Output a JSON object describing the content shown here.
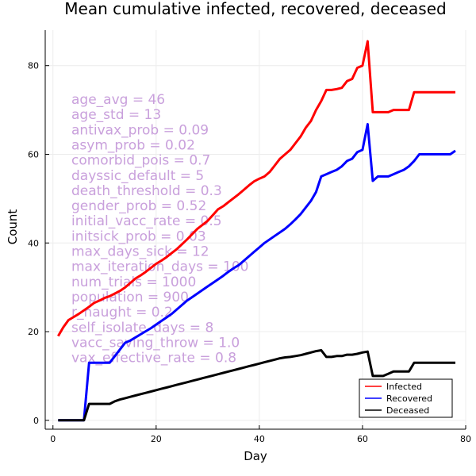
{
  "chart_data": {
    "type": "line",
    "title": "Mean cumulative infected, recovered, deceased",
    "xlabel": "Day",
    "ylabel": "Count",
    "xlim": [
      -1.5,
      80
    ],
    "ylim": [
      -2,
      88
    ],
    "xticks": [
      0,
      20,
      40,
      60,
      80
    ],
    "yticks": [
      0,
      20,
      40,
      60,
      80
    ],
    "grid": true,
    "legend_position": "bottom-right",
    "annotation_color": "#c9a0dc",
    "annotations": [
      "age_avg = 46",
      "age_std = 13",
      "antivax_prob = 0.09",
      "asym_prob = 0.02",
      "comorbid_pois = 0.7",
      "dayssic_default = 5",
      "death_threshold = 0.3",
      "gender_prob = 0.52",
      "initial_vacc_rate = 0.5",
      "initsick_prob = 0.03",
      "max_days_sick = 12",
      "max_iteration_days = 100",
      "num_trials = 1000",
      "population = 900",
      "r_naught = 0.2",
      "self_isolate_days = 8",
      "vacc_saving_throw = 1.0",
      "vax_effective_rate = 0.8"
    ],
    "series": [
      {
        "name": "Infected",
        "color": "#ff0000",
        "points": [
          [
            1,
            19
          ],
          [
            2,
            21
          ],
          [
            3,
            22.6
          ],
          [
            4,
            23.3
          ],
          [
            5,
            24
          ],
          [
            6,
            24.8
          ],
          [
            7,
            25.6
          ],
          [
            8,
            26.5
          ],
          [
            9,
            27
          ],
          [
            10,
            27.6
          ],
          [
            11,
            28
          ],
          [
            12,
            28.6
          ],
          [
            13,
            29.2
          ],
          [
            14,
            30
          ],
          [
            15,
            31
          ],
          [
            16,
            32
          ],
          [
            17,
            32.7
          ],
          [
            18,
            33.5
          ],
          [
            19,
            34.4
          ],
          [
            20,
            35.3
          ],
          [
            21,
            36
          ],
          [
            22,
            36.8
          ],
          [
            23,
            37.7
          ],
          [
            24,
            38.6
          ],
          [
            25,
            39.7
          ],
          [
            26,
            40.8
          ],
          [
            27,
            42
          ],
          [
            28,
            43.2
          ],
          [
            29,
            44.1
          ],
          [
            30,
            45
          ],
          [
            31,
            46.3
          ],
          [
            32,
            47.6
          ],
          [
            33,
            48.3
          ],
          [
            34,
            49.2
          ],
          [
            35,
            50.1
          ],
          [
            36,
            51
          ],
          [
            37,
            52
          ],
          [
            38,
            53
          ],
          [
            39,
            53.9
          ],
          [
            40,
            54.5
          ],
          [
            41,
            55
          ],
          [
            42,
            56
          ],
          [
            43,
            57.5
          ],
          [
            44,
            59
          ],
          [
            45,
            60
          ],
          [
            46,
            61
          ],
          [
            47,
            62.5
          ],
          [
            48,
            64
          ],
          [
            49,
            66
          ],
          [
            50,
            67.5
          ],
          [
            51,
            70
          ],
          [
            52,
            72
          ],
          [
            53,
            74.5
          ],
          [
            54,
            74.5
          ],
          [
            55,
            74.7
          ],
          [
            56,
            75
          ],
          [
            57,
            76.5
          ],
          [
            58,
            77
          ],
          [
            59,
            79.5
          ],
          [
            60,
            80
          ],
          [
            61,
            85.5
          ],
          [
            62,
            69.5
          ],
          [
            63,
            69.5
          ],
          [
            64,
            69.5
          ],
          [
            65,
            69.5
          ],
          [
            66,
            70
          ],
          [
            67,
            70
          ],
          [
            68,
            70
          ],
          [
            69,
            70
          ],
          [
            70,
            74
          ],
          [
            71,
            74
          ],
          [
            72,
            74
          ],
          [
            73,
            74
          ],
          [
            74,
            74
          ],
          [
            75,
            74
          ],
          [
            76,
            74
          ],
          [
            77,
            74
          ],
          [
            78,
            74
          ]
        ]
      },
      {
        "name": "Recovered",
        "color": "#0000ff",
        "points": [
          [
            1,
            0
          ],
          [
            2,
            0
          ],
          [
            3,
            0
          ],
          [
            4,
            0
          ],
          [
            5,
            0
          ],
          [
            6,
            0
          ],
          [
            7,
            13
          ],
          [
            8,
            13
          ],
          [
            9,
            13
          ],
          [
            10,
            13
          ],
          [
            11,
            13
          ],
          [
            12,
            14.5
          ],
          [
            13,
            16
          ],
          [
            14,
            17.5
          ],
          [
            15,
            18
          ],
          [
            16,
            18.7
          ],
          [
            17,
            19.4
          ],
          [
            18,
            20.1
          ],
          [
            19,
            20.8
          ],
          [
            20,
            21.6
          ],
          [
            21,
            22.4
          ],
          [
            22,
            23.2
          ],
          [
            23,
            24
          ],
          [
            24,
            25
          ],
          [
            25,
            26
          ],
          [
            26,
            27
          ],
          [
            27,
            27.8
          ],
          [
            28,
            28.6
          ],
          [
            29,
            29.4
          ],
          [
            30,
            30.2
          ],
          [
            31,
            31
          ],
          [
            32,
            31.8
          ],
          [
            33,
            32.6
          ],
          [
            34,
            33.5
          ],
          [
            35,
            34.3
          ],
          [
            36,
            35
          ],
          [
            37,
            36
          ],
          [
            38,
            37
          ],
          [
            39,
            38
          ],
          [
            40,
            39
          ],
          [
            41,
            40
          ],
          [
            42,
            40.8
          ],
          [
            43,
            41.6
          ],
          [
            44,
            42.4
          ],
          [
            45,
            43.2
          ],
          [
            46,
            44.2
          ],
          [
            47,
            45.3
          ],
          [
            48,
            46.5
          ],
          [
            49,
            48
          ],
          [
            50,
            49.5
          ],
          [
            51,
            51.5
          ],
          [
            52,
            55
          ],
          [
            53,
            55.5
          ],
          [
            54,
            56
          ],
          [
            55,
            56.5
          ],
          [
            56,
            57.3
          ],
          [
            57,
            58.5
          ],
          [
            58,
            59
          ],
          [
            59,
            60.5
          ],
          [
            60,
            61
          ],
          [
            61,
            66.8
          ],
          [
            62,
            54
          ],
          [
            63,
            55
          ],
          [
            64,
            55
          ],
          [
            65,
            55
          ],
          [
            66,
            55.5
          ],
          [
            67,
            56
          ],
          [
            68,
            56.5
          ],
          [
            69,
            57.3
          ],
          [
            70,
            58.5
          ],
          [
            71,
            60
          ],
          [
            72,
            60
          ],
          [
            73,
            60
          ],
          [
            74,
            60
          ],
          [
            75,
            60
          ],
          [
            76,
            60
          ],
          [
            77,
            60
          ],
          [
            78,
            60.8
          ]
        ]
      },
      {
        "name": "Deceased",
        "color": "#000000",
        "points": [
          [
            1,
            0
          ],
          [
            2,
            0
          ],
          [
            3,
            0
          ],
          [
            4,
            0
          ],
          [
            5,
            0
          ],
          [
            6,
            0
          ],
          [
            7,
            3.7
          ],
          [
            8,
            3.7
          ],
          [
            9,
            3.7
          ],
          [
            10,
            3.7
          ],
          [
            11,
            3.7
          ],
          [
            12,
            4.3
          ],
          [
            13,
            4.7
          ],
          [
            14,
            5
          ],
          [
            15,
            5.3
          ],
          [
            16,
            5.6
          ],
          [
            17,
            5.9
          ],
          [
            18,
            6.2
          ],
          [
            19,
            6.5
          ],
          [
            20,
            6.8
          ],
          [
            21,
            7.1
          ],
          [
            22,
            7.4
          ],
          [
            23,
            7.7
          ],
          [
            24,
            8
          ],
          [
            25,
            8.3
          ],
          [
            26,
            8.6
          ],
          [
            27,
            8.9
          ],
          [
            28,
            9.2
          ],
          [
            29,
            9.5
          ],
          [
            30,
            9.8
          ],
          [
            31,
            10.1
          ],
          [
            32,
            10.4
          ],
          [
            33,
            10.7
          ],
          [
            34,
            11
          ],
          [
            35,
            11.3
          ],
          [
            36,
            11.6
          ],
          [
            37,
            11.9
          ],
          [
            38,
            12.2
          ],
          [
            39,
            12.5
          ],
          [
            40,
            12.8
          ],
          [
            41,
            13.1
          ],
          [
            42,
            13.4
          ],
          [
            43,
            13.7
          ],
          [
            44,
            14
          ],
          [
            45,
            14.2
          ],
          [
            46,
            14.3
          ],
          [
            47,
            14.5
          ],
          [
            48,
            14.7
          ],
          [
            49,
            15
          ],
          [
            50,
            15.3
          ],
          [
            51,
            15.6
          ],
          [
            52,
            15.8
          ],
          [
            53,
            14.3
          ],
          [
            54,
            14.3
          ],
          [
            55,
            14.5
          ],
          [
            56,
            14.5
          ],
          [
            57,
            14.8
          ],
          [
            58,
            14.8
          ],
          [
            59,
            15
          ],
          [
            60,
            15.3
          ],
          [
            61,
            15.5
          ],
          [
            62,
            10
          ],
          [
            63,
            10
          ],
          [
            64,
            10
          ],
          [
            65,
            10.5
          ],
          [
            66,
            11
          ],
          [
            67,
            11
          ],
          [
            68,
            11
          ],
          [
            69,
            11
          ],
          [
            70,
            13
          ],
          [
            71,
            13
          ],
          [
            72,
            13
          ],
          [
            73,
            13
          ],
          [
            74,
            13
          ],
          [
            75,
            13
          ],
          [
            76,
            13
          ],
          [
            77,
            13
          ],
          [
            78,
            13
          ]
        ]
      }
    ]
  }
}
